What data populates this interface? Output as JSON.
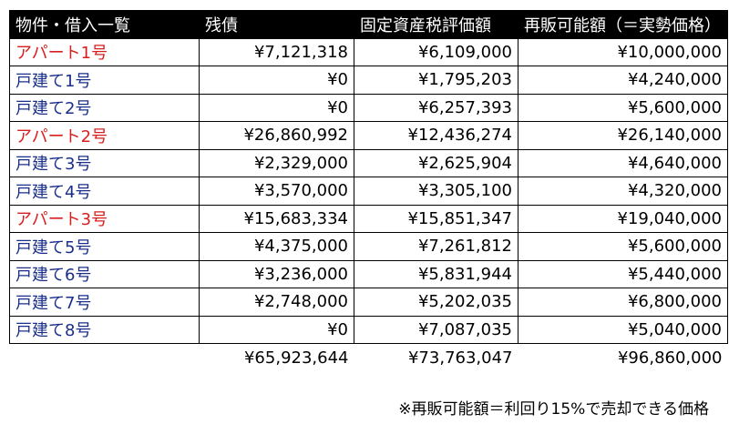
{
  "header": {
    "col1": "物件・借入一覧",
    "col2": "残債",
    "col3": "固定資産税評価額",
    "col4": "再販可能額（＝実勢価格）"
  },
  "rows": [
    {
      "name": "アパート1号",
      "type": "apartment",
      "debt": "¥7,121,318",
      "tax_value": "¥6,109,000",
      "resale": "¥10,000,000"
    },
    {
      "name": "戸建て1号",
      "type": "house",
      "debt": "¥0",
      "tax_value": "¥1,795,203",
      "resale": "¥4,240,000"
    },
    {
      "name": "戸建て2号",
      "type": "house",
      "debt": "¥0",
      "tax_value": "¥6,257,393",
      "resale": "¥5,600,000"
    },
    {
      "name": "アパート2号",
      "type": "apartment",
      "debt": "¥26,860,992",
      "tax_value": "¥12,436,274",
      "resale": "¥26,140,000"
    },
    {
      "name": "戸建て3号",
      "type": "house",
      "debt": "¥2,329,000",
      "tax_value": "¥2,625,904",
      "resale": "¥4,640,000"
    },
    {
      "name": "戸建て4号",
      "type": "house",
      "debt": "¥3,570,000",
      "tax_value": "¥3,305,100",
      "resale": "¥4,320,000"
    },
    {
      "name": "アパート3号",
      "type": "apartment",
      "debt": "¥15,683,334",
      "tax_value": "¥15,851,347",
      "resale": "¥19,040,000"
    },
    {
      "name": "戸建て5号",
      "type": "house",
      "debt": "¥4,375,000",
      "tax_value": "¥7,261,812",
      "resale": "¥5,600,000"
    },
    {
      "name": "戸建て6号",
      "type": "house",
      "debt": "¥3,236,000",
      "tax_value": "¥5,831,944",
      "resale": "¥5,440,000"
    },
    {
      "name": "戸建て7号",
      "type": "house",
      "debt": "¥2,748,000",
      "tax_value": "¥5,202,035",
      "resale": "¥6,800,000"
    },
    {
      "name": "戸建て8号",
      "type": "house",
      "debt": "¥0",
      "tax_value": "¥7,087,035",
      "resale": "¥5,040,000"
    }
  ],
  "totals": {
    "debt": "¥65,923,644",
    "tax_value": "¥73,763,047",
    "resale": "¥96,860,000"
  },
  "note": "※再販可能額＝利回り15%で売却できる価格",
  "colors": {
    "apartment": "#d81e1e",
    "house": "#1a2f8c",
    "header_bg": "#000000",
    "header_text": "#ffffff"
  }
}
